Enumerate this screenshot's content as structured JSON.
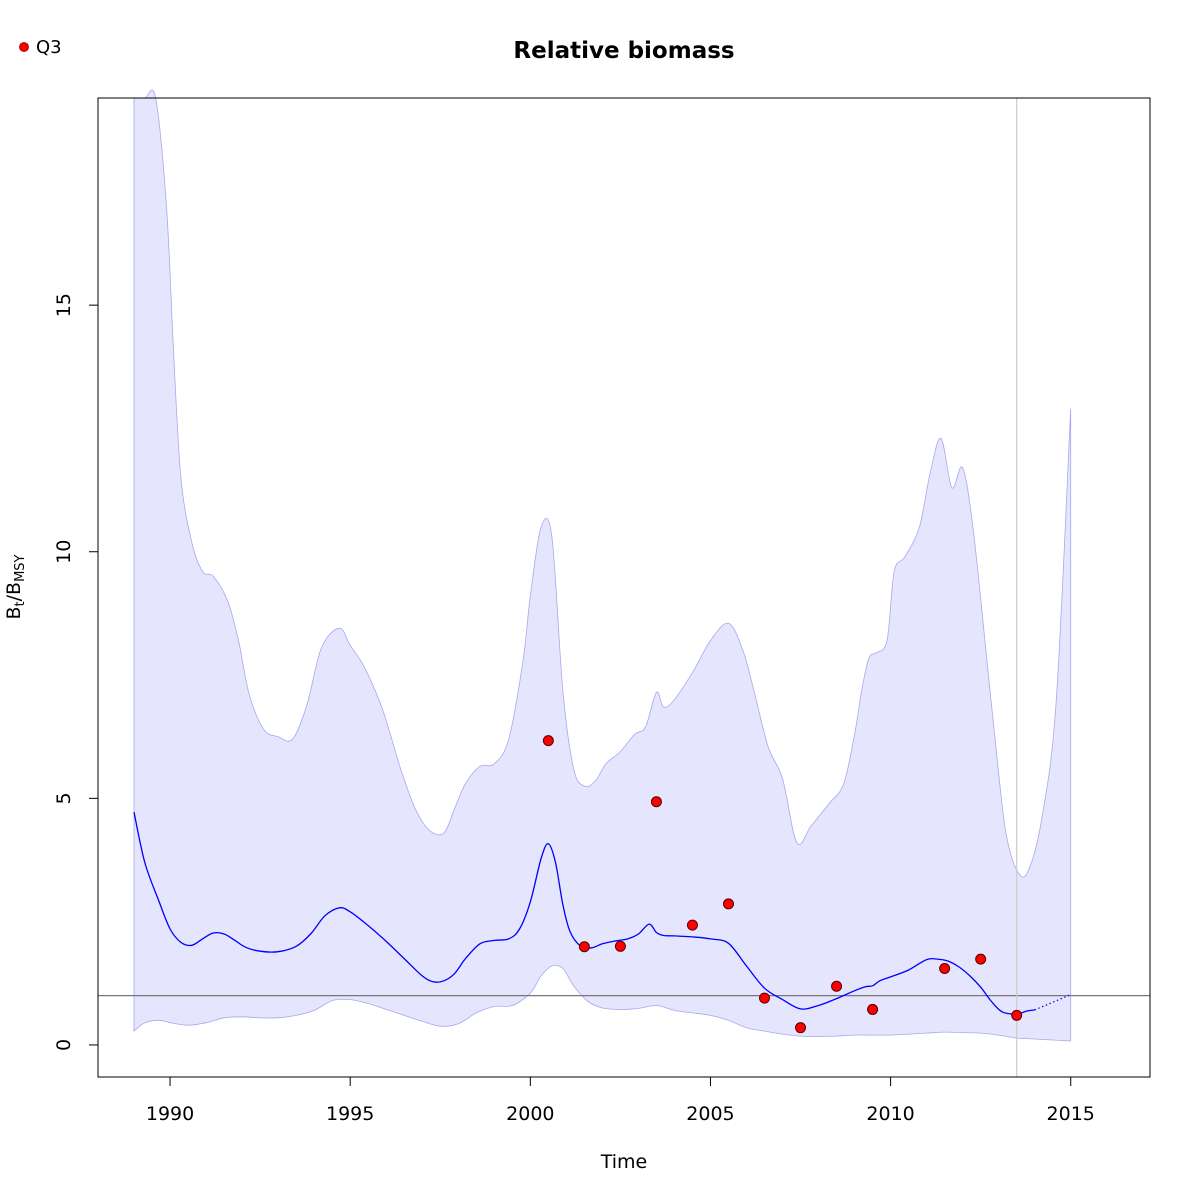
{
  "chart_data": {
    "type": "line",
    "title": "Relative biomass",
    "xlabel": "Time",
    "ylabel": {
      "main": "B",
      "sub1": "t",
      "sep": "/B",
      "sub2": "MSY"
    },
    "xlim": [
      1988,
      2017.2
    ],
    "ylim": [
      -0.65,
      19.2
    ],
    "xticks": [
      1990,
      1995,
      2000,
      2005,
      2010,
      2015
    ],
    "xtick_labels": [
      "1990",
      "1995",
      "2000",
      "2005",
      "2010",
      "2015"
    ],
    "yticks": [
      0,
      5,
      10,
      15
    ],
    "ytick_labels": [
      "0",
      "5",
      "10",
      "15"
    ],
    "reference_line_y": 1,
    "vertical_line_x": 2013.5,
    "grid": false,
    "legend": {
      "position": "top-left",
      "entries": [
        {
          "label": "Q3",
          "color": "#ff0000"
        }
      ]
    },
    "colors": {
      "estimate": "#0000ff",
      "ci_fill": "#e5e5fd",
      "ci_edge": "#a8a8ee",
      "point": "#ff0000",
      "refline": "#777777",
      "vline": "#cccccc"
    },
    "series": [
      {
        "name": "Q3",
        "type": "scatter",
        "x": [
          2000.5,
          2001.5,
          2002.5,
          2003.5,
          2004.5,
          2005.5,
          2006.5,
          2007.5,
          2008.5,
          2009.5,
          2011.5,
          2012.5,
          2013.5
        ],
        "values": [
          6.17,
          1.99,
          2.0,
          4.93,
          2.43,
          2.86,
          0.95,
          0.35,
          1.19,
          0.72,
          1.55,
          1.74,
          0.6
        ]
      }
    ],
    "estimate": {
      "x": [
        1989,
        1989.3,
        1989.7,
        1990,
        1990.3,
        1990.6,
        1990.9,
        1991.2,
        1991.5,
        1991.8,
        1992.1,
        1992.5,
        1993,
        1993.5,
        1993.9,
        1994.3,
        1994.7,
        1995,
        1995.5,
        1996,
        1996.5,
        1997,
        1997.3,
        1997.6,
        1997.9,
        1998.2,
        1998.6,
        1999,
        1999.4,
        1999.7,
        2000,
        2000.3,
        2000.5,
        2000.7,
        2000.9,
        2001.1,
        2001.4,
        2001.7,
        2002,
        2002.3,
        2002.7,
        2003,
        2003.3,
        2003.5,
        2003.7,
        2004,
        2004.5,
        2005,
        2005.5,
        2006,
        2006.5,
        2007,
        2007.5,
        2008,
        2008.5,
        2009,
        2009.3,
        2009.5,
        2009.7,
        2010,
        2010.5,
        2011,
        2011.3,
        2011.6,
        2011.9,
        2012.2,
        2012.5,
        2012.8,
        2013.1,
        2013.5,
        2013.8,
        2014
      ],
      "values": [
        4.72,
        3.7,
        2.9,
        2.35,
        2.08,
        2.02,
        2.15,
        2.27,
        2.25,
        2.12,
        1.98,
        1.9,
        1.89,
        2.0,
        2.25,
        2.62,
        2.78,
        2.7,
        2.42,
        2.1,
        1.75,
        1.4,
        1.28,
        1.3,
        1.45,
        1.75,
        2.05,
        2.12,
        2.15,
        2.35,
        2.9,
        3.78,
        4.08,
        3.7,
        2.85,
        2.3,
        2.0,
        1.97,
        2.05,
        2.1,
        2.15,
        2.25,
        2.45,
        2.28,
        2.22,
        2.21,
        2.19,
        2.15,
        2.06,
        1.6,
        1.15,
        0.92,
        0.73,
        0.8,
        0.94,
        1.1,
        1.18,
        1.2,
        1.3,
        1.38,
        1.52,
        1.73,
        1.74,
        1.7,
        1.58,
        1.4,
        1.17,
        0.88,
        0.67,
        0.63,
        0.69,
        0.71
      ]
    },
    "projection": {
      "x": [
        2014,
        2015
      ],
      "values": [
        0.71,
        1.02
      ]
    },
    "ci_upper": {
      "x": [
        1989,
        1989.3,
        1989.6,
        1989.9,
        1990.1,
        1990.3,
        1990.6,
        1990.9,
        1991.2,
        1991.6,
        1991.9,
        1992.2,
        1992.6,
        1993,
        1993.4,
        1993.8,
        1994.2,
        1994.7,
        1995,
        1995.4,
        1995.9,
        1996.4,
        1996.8,
        1997.2,
        1997.6,
        1997.9,
        1998.2,
        1998.6,
        1999,
        1999.4,
        1999.8,
        2000,
        2000.3,
        2000.6,
        2000.9,
        2001.2,
        2001.5,
        2001.8,
        2002.1,
        2002.5,
        2002.9,
        2003.2,
        2003.5,
        2003.7,
        2004,
        2004.5,
        2005,
        2005.5,
        2005.9,
        2006.2,
        2006.6,
        2007,
        2007.4,
        2007.8,
        2008.3,
        2008.7,
        2009,
        2009.2,
        2009.4,
        2009.6,
        2009.9,
        2010.1,
        2010.4,
        2010.8,
        2011.1,
        2011.4,
        2011.7,
        2012,
        2012.3,
        2012.7,
        2013,
        2013.2,
        2013.5,
        2013.8,
        2014.2,
        2014.6,
        2015
      ],
      "values": [
        19.3,
        19.3,
        19.3,
        17.0,
        14.0,
        11.5,
        10.2,
        9.6,
        9.5,
        9.0,
        8.2,
        7.1,
        6.4,
        6.25,
        6.2,
        6.9,
        8.05,
        8.45,
        8.1,
        7.65,
        6.8,
        5.6,
        4.8,
        4.35,
        4.3,
        4.8,
        5.3,
        5.65,
        5.7,
        6.2,
        7.8,
        9.1,
        10.5,
        10.3,
        7.2,
        5.6,
        5.25,
        5.35,
        5.7,
        5.95,
        6.3,
        6.45,
        7.15,
        6.85,
        7.0,
        7.55,
        8.2,
        8.55,
        8.0,
        7.2,
        6.05,
        5.4,
        4.1,
        4.45,
        4.9,
        5.3,
        6.3,
        7.2,
        7.85,
        7.95,
        8.2,
        9.6,
        9.9,
        10.5,
        11.6,
        12.3,
        11.3,
        11.7,
        10.4,
        7.6,
        5.5,
        4.3,
        3.55,
        3.5,
        4.6,
        7.0,
        12.9
      ]
    },
    "ci_lower": {
      "x": [
        1989,
        1989.3,
        1989.7,
        1990,
        1990.5,
        1991,
        1991.5,
        1992,
        1992.5,
        1993,
        1993.5,
        1994,
        1994.5,
        1995,
        1995.5,
        1996,
        1996.5,
        1997,
        1997.5,
        1998,
        1998.5,
        1999,
        1999.5,
        2000,
        2000.3,
        2000.6,
        2000.9,
        2001.2,
        2001.6,
        2002,
        2002.5,
        2003,
        2003.5,
        2004,
        2004.5,
        2005,
        2005.5,
        2006,
        2006.5,
        2007,
        2007.5,
        2008,
        2008.5,
        2009,
        2009.5,
        2010,
        2010.5,
        2011,
        2011.5,
        2012,
        2012.5,
        2013,
        2013.5,
        2014,
        2014.5,
        2015
      ],
      "values": [
        0.28,
        0.45,
        0.5,
        0.45,
        0.4,
        0.45,
        0.55,
        0.57,
        0.55,
        0.55,
        0.6,
        0.7,
        0.9,
        0.92,
        0.84,
        0.72,
        0.6,
        0.48,
        0.38,
        0.43,
        0.65,
        0.78,
        0.8,
        1.05,
        1.4,
        1.6,
        1.55,
        1.2,
        0.88,
        0.75,
        0.72,
        0.74,
        0.8,
        0.7,
        0.65,
        0.6,
        0.5,
        0.35,
        0.28,
        0.22,
        0.18,
        0.17,
        0.18,
        0.2,
        0.2,
        0.2,
        0.22,
        0.24,
        0.26,
        0.25,
        0.24,
        0.2,
        0.14,
        0.12,
        0.1,
        0.08
      ]
    }
  }
}
